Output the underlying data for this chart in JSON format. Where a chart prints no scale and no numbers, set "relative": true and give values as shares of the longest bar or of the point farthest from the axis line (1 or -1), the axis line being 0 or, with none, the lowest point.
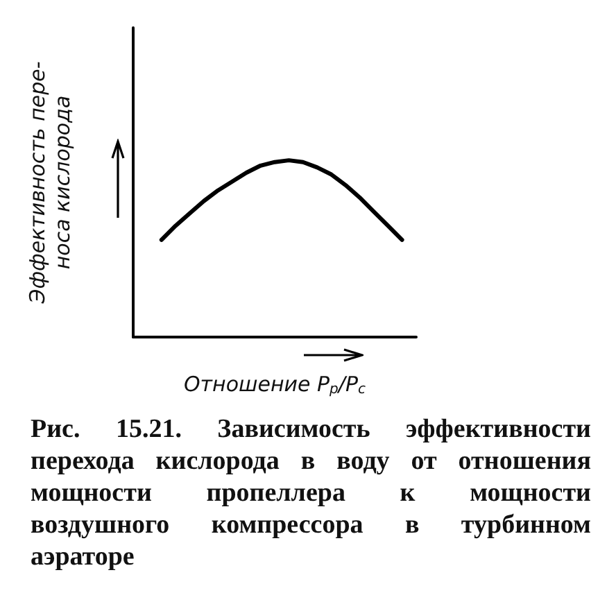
{
  "chart_data": {
    "type": "line",
    "relative": true,
    "xlabel": "Отношение P$_{р}$/P$_{с}$",
    "ylabel": "Эффективность пере-\nноса кислорода",
    "categories": [
      null,
      null,
      null,
      null,
      null,
      null,
      null,
      null,
      null,
      null,
      null,
      null,
      null,
      null,
      null,
      null,
      null,
      null,
      null,
      null,
      null
    ],
    "series": [
      {
        "color": "#000000",
        "values": [
          null,
          null,
          0.55,
          0.63,
          0.7,
          0.77,
          0.83,
          0.88,
          0.93,
          0.97,
          0.99,
          1.0,
          0.99,
          0.96,
          0.92,
          0.86,
          0.79,
          0.71,
          0.63,
          0.55,
          null
        ]
      }
    ],
    "marker": "none",
    "annotations": [
      "Рис. 15.21. Зависимость эффективности перехода кислорода в воду от отношения мощности пропеллера к мощности воздушного компрессора в турбинном аэраторе"
    ]
  }
}
